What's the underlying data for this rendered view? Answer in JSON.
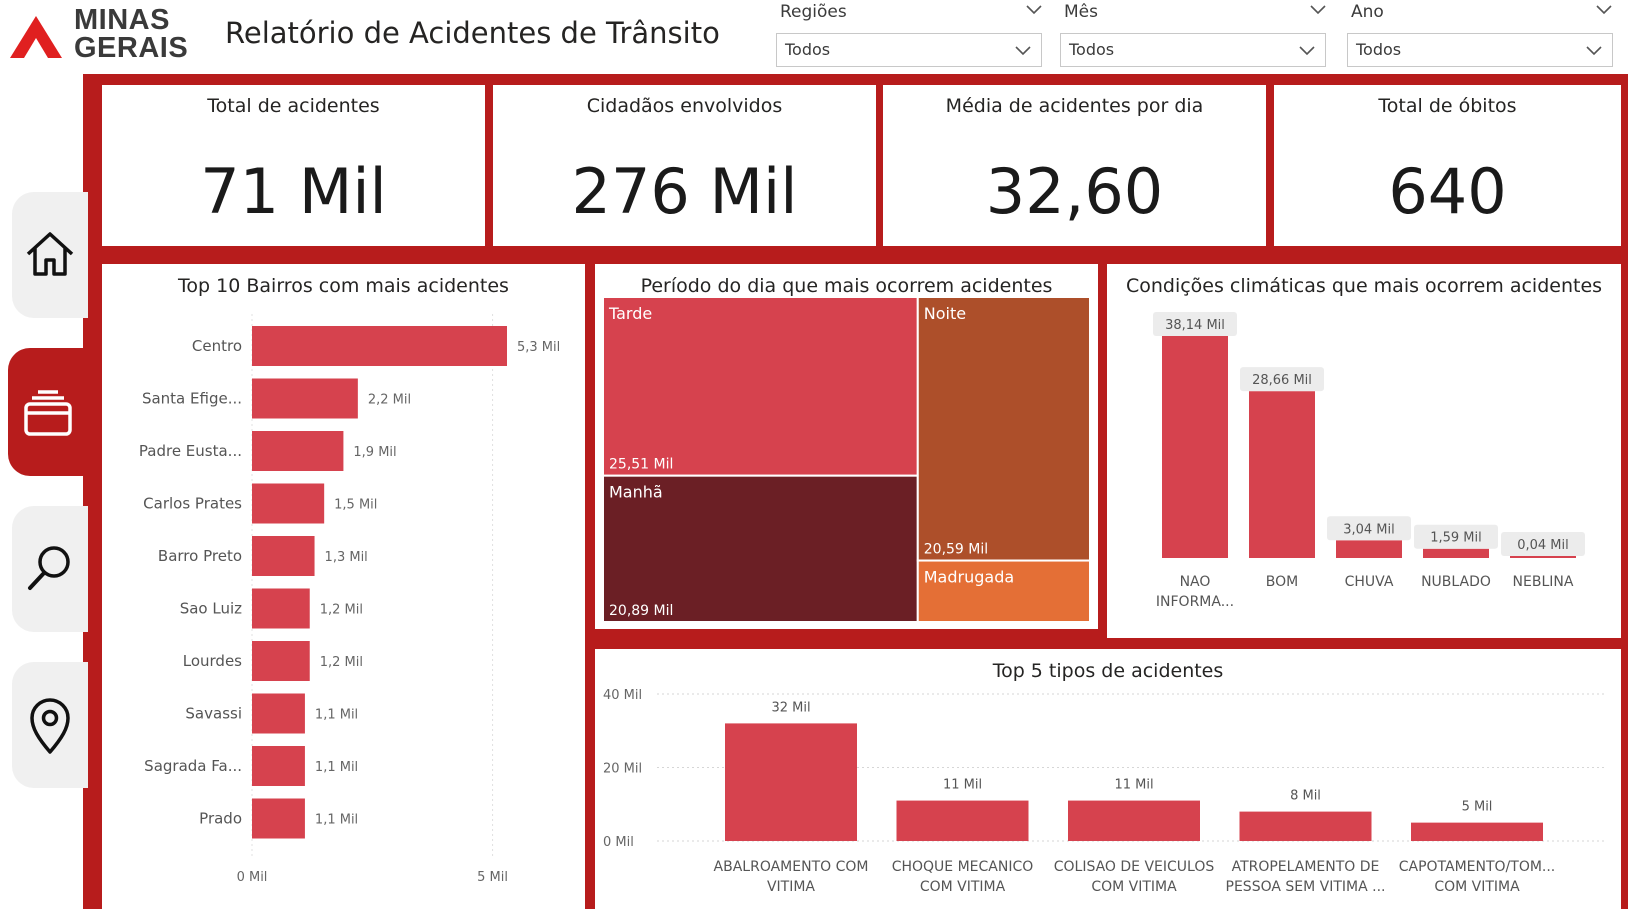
{
  "header": {
    "logo_line1": "MINAS",
    "logo_line2": "GERAIS",
    "title": "Relatório de Acidentes de Trânsito"
  },
  "filters": [
    {
      "label": "Regiões",
      "value": "Todos"
    },
    {
      "label": "Mês",
      "value": "Todos"
    },
    {
      "label": "Ano",
      "value": "Todos"
    }
  ],
  "nav": [
    {
      "icon": "home-icon"
    },
    {
      "icon": "report-icon",
      "active": true
    },
    {
      "icon": "search-icon"
    },
    {
      "icon": "map-pin-icon"
    }
  ],
  "kpis": [
    {
      "label": "Total de acidentes",
      "value": "71 Mil"
    },
    {
      "label": "Cidadãos envolvidos",
      "value": "276 Mil"
    },
    {
      "label": "Média de acidentes por dia",
      "value": "32,60"
    },
    {
      "label": "Total de óbitos",
      "value": "640"
    }
  ],
  "colors": {
    "brand": "#b71c1c",
    "bar": "#d6424e",
    "tarde": "#d6424e",
    "manha": "#6b1f25",
    "noite": "#ad4f2a",
    "madrugada": "#e46f36"
  },
  "chart_data": [
    {
      "type": "bar",
      "orientation": "horizontal",
      "title": "Top 10 Bairros com mais acidentes",
      "categories": [
        "Centro",
        "Santa Efige...",
        "Padre Eusta...",
        "Carlos Prates",
        "Barro Preto",
        "Sao Luiz",
        "Lourdes",
        "Savassi",
        "Sagrada Fa...",
        "Prado"
      ],
      "values": [
        5.3,
        2.2,
        1.9,
        1.5,
        1.3,
        1.2,
        1.2,
        1.1,
        1.1,
        1.1
      ],
      "labels": [
        "5,3 Mil",
        "2,2 Mil",
        "1,9 Mil",
        "1,5 Mil",
        "1,3 Mil",
        "1,2 Mil",
        "1,2 Mil",
        "1,1 Mil",
        "1,1 Mil",
        "1,1 Mil"
      ],
      "xticks": [
        "0 Mil",
        "5 Mil"
      ],
      "xtick_values": [
        0,
        5
      ],
      "xlim": [
        0,
        5.3
      ]
    },
    {
      "type": "treemap",
      "title": "Período do dia que mais ocorrem acidentes",
      "categories": [
        "Tarde",
        "Manhã",
        "Noite",
        "Madrugada"
      ],
      "values": [
        25.51,
        20.89,
        20.59,
        4.8
      ],
      "labels": [
        "25,51 Mil",
        "20,89 Mil",
        "20,59 Mil",
        ""
      ]
    },
    {
      "type": "bar",
      "title": "Condições climáticas que mais ocorrem acidentes",
      "categories": [
        [
          "NAO",
          "INFORMA..."
        ],
        [
          "BOM"
        ],
        [
          "CHUVA"
        ],
        [
          "NUBLADO"
        ],
        [
          "NEBLINA"
        ]
      ],
      "values": [
        38.14,
        28.66,
        3.04,
        1.59,
        0.04
      ],
      "labels": [
        "38,14 Mil",
        "28,66 Mil",
        "3,04 Mil",
        "1,59 Mil",
        "0,04 Mil"
      ]
    },
    {
      "type": "bar",
      "title": "Top 5 tipos de acidentes",
      "categories": [
        [
          "ABALROAMENTO COM",
          "VITIMA"
        ],
        [
          "CHOQUE MECANICO",
          "COM VITIMA"
        ],
        [
          "COLISAO DE VEICULOS",
          "COM VITIMA"
        ],
        [
          "ATROPELAMENTO DE",
          "PESSOA SEM VITIMA ..."
        ],
        [
          "CAPOTAMENTO/TOM...",
          "COM VITIMA"
        ]
      ],
      "values": [
        32,
        11,
        11,
        8,
        5
      ],
      "labels": [
        "32 Mil",
        "11 Mil",
        "11 Mil",
        "8 Mil",
        "5 Mil"
      ],
      "yticks": [
        "0 Mil",
        "20 Mil",
        "40 Mil"
      ],
      "ytick_values": [
        0,
        20,
        40
      ],
      "ylim": [
        0,
        40
      ],
      "grid": true
    }
  ]
}
